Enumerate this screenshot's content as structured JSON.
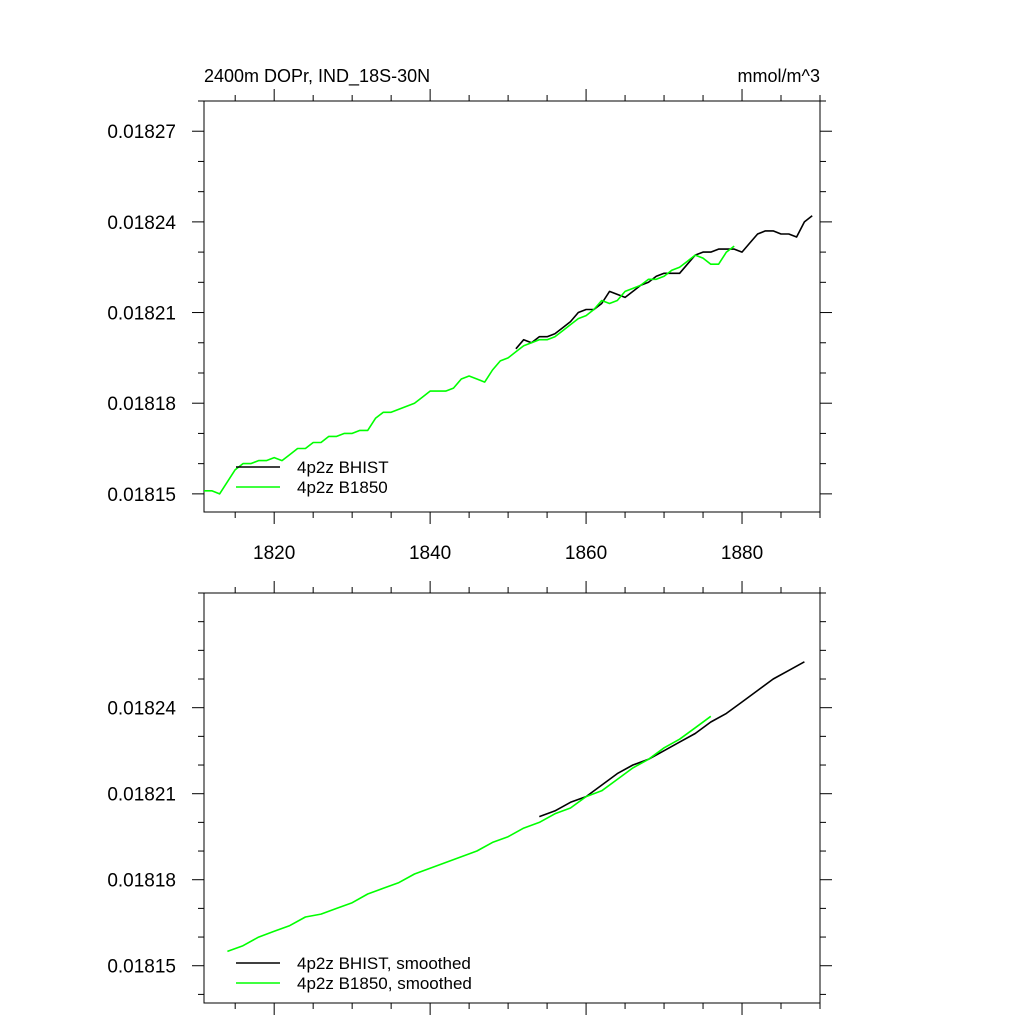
{
  "chart_data": [
    {
      "type": "line",
      "title": "2400m DOPr, IND_18S-30N",
      "units": "mmol/m^3",
      "xlabel": "",
      "ylabel": "",
      "xlim": [
        1811,
        1890
      ],
      "ylim": [
        0.018144,
        0.01828
      ],
      "x_ticks": [
        1820,
        1840,
        1860,
        1880
      ],
      "y_ticks": [
        0.01815,
        0.01818,
        0.01821,
        0.01824,
        0.01827
      ],
      "y_tick_labels": [
        "0.01815",
        "0.01818",
        "0.01821",
        "0.01824",
        "0.01827"
      ],
      "x_tick_labels": [
        "1820",
        "1840",
        "1860",
        "1880"
      ],
      "grid": false,
      "legend": "bottom-left",
      "series": [
        {
          "name": "4p2z BHIST",
          "color": "#000000",
          "x": [
            1851,
            1852,
            1853,
            1854,
            1855,
            1856,
            1857,
            1858,
            1859,
            1860,
            1861,
            1862,
            1863,
            1864,
            1865,
            1866,
            1867,
            1868,
            1869,
            1870,
            1871,
            1872,
            1873,
            1874,
            1875,
            1876,
            1877,
            1878,
            1879,
            1880,
            1881,
            1882,
            1883,
            1884,
            1885,
            1886,
            1887,
            1888,
            1889
          ],
          "y": [
            0.018198,
            0.018201,
            0.0182,
            0.018202,
            0.018202,
            0.018203,
            0.018205,
            0.018207,
            0.01821,
            0.018211,
            0.018211,
            0.018213,
            0.018217,
            0.018216,
            0.018215,
            0.018217,
            0.018219,
            0.01822,
            0.018222,
            0.018223,
            0.018223,
            0.018223,
            0.018226,
            0.018229,
            0.01823,
            0.01823,
            0.018231,
            0.018231,
            0.018231,
            0.01823,
            0.018233,
            0.018236,
            0.018237,
            0.018237,
            0.018236,
            0.018236,
            0.018235,
            0.01824,
            0.018242
          ]
        },
        {
          "name": "4p2z B1850",
          "color": "#00ff00",
          "x": [
            1811,
            1812,
            1813,
            1814,
            1815,
            1816,
            1817,
            1818,
            1819,
            1820,
            1821,
            1822,
            1823,
            1824,
            1825,
            1826,
            1827,
            1828,
            1829,
            1830,
            1831,
            1832,
            1833,
            1834,
            1835,
            1836,
            1837,
            1838,
            1839,
            1840,
            1841,
            1842,
            1843,
            1844,
            1845,
            1846,
            1847,
            1848,
            1849,
            1850,
            1851,
            1852,
            1853,
            1854,
            1855,
            1856,
            1857,
            1858,
            1859,
            1860,
            1861,
            1862,
            1863,
            1864,
            1865,
            1866,
            1867,
            1868,
            1869,
            1870,
            1871,
            1872,
            1873,
            1874,
            1875,
            1876,
            1877,
            1878,
            1879
          ],
          "y": [
            0.018151,
            0.018151,
            0.01815,
            0.018154,
            0.018158,
            0.01816,
            0.01816,
            0.018161,
            0.018161,
            0.018162,
            0.018161,
            0.018163,
            0.018165,
            0.018165,
            0.018167,
            0.018167,
            0.018169,
            0.018169,
            0.01817,
            0.01817,
            0.018171,
            0.018171,
            0.018175,
            0.018177,
            0.018177,
            0.018178,
            0.018179,
            0.01818,
            0.018182,
            0.018184,
            0.018184,
            0.018184,
            0.018185,
            0.018188,
            0.018189,
            0.018188,
            0.018187,
            0.018191,
            0.018194,
            0.018195,
            0.018197,
            0.018199,
            0.0182,
            0.018201,
            0.018201,
            0.018202,
            0.018204,
            0.018206,
            0.018208,
            0.018209,
            0.018211,
            0.018214,
            0.018213,
            0.018214,
            0.018217,
            0.018218,
            0.018219,
            0.018221,
            0.018221,
            0.018222,
            0.018224,
            0.018225,
            0.018227,
            0.018229,
            0.018228,
            0.018226,
            0.018226,
            0.01823,
            0.018232
          ]
        }
      ]
    },
    {
      "type": "line",
      "title": "",
      "xlabel": "",
      "ylabel": "",
      "xlim": [
        1811,
        1890
      ],
      "ylim": [
        0.018137,
        0.01828
      ],
      "x_ticks": [
        1820,
        1840,
        1860,
        1880
      ],
      "y_ticks": [
        0.01815,
        0.01818,
        0.01821,
        0.01824
      ],
      "y_tick_labels": [
        "0.01815",
        "0.01818",
        "0.01821",
        "0.01824"
      ],
      "grid": false,
      "legend": "bottom-left",
      "series": [
        {
          "name": "4p2z BHIST, smoothed",
          "color": "#000000",
          "x": [
            1854,
            1856,
            1858,
            1860,
            1862,
            1864,
            1866,
            1868,
            1870,
            1872,
            1874,
            1876,
            1878,
            1880,
            1882,
            1884,
            1886,
            1888
          ],
          "y": [
            0.018202,
            0.018204,
            0.018207,
            0.018209,
            0.018213,
            0.018217,
            0.01822,
            0.018222,
            0.018225,
            0.018228,
            0.018231,
            0.018235,
            0.018238,
            0.018242,
            0.018246,
            0.01825,
            0.018253,
            0.018256
          ]
        },
        {
          "name": "4p2z B1850, smoothed",
          "color": "#00ff00",
          "x": [
            1814,
            1816,
            1818,
            1820,
            1822,
            1824,
            1826,
            1828,
            1830,
            1832,
            1834,
            1836,
            1838,
            1840,
            1842,
            1844,
            1846,
            1848,
            1850,
            1852,
            1854,
            1856,
            1858,
            1860,
            1862,
            1864,
            1866,
            1868,
            1870,
            1872,
            1874,
            1876
          ],
          "y": [
            0.018155,
            0.018157,
            0.01816,
            0.018162,
            0.018164,
            0.018167,
            0.018168,
            0.01817,
            0.018172,
            0.018175,
            0.018177,
            0.018179,
            0.018182,
            0.018184,
            0.018186,
            0.018188,
            0.01819,
            0.018193,
            0.018195,
            0.018198,
            0.0182,
            0.018203,
            0.018205,
            0.018209,
            0.018211,
            0.018215,
            0.018219,
            0.018222,
            0.018226,
            0.018229,
            0.018233,
            0.018237
          ]
        }
      ]
    }
  ]
}
